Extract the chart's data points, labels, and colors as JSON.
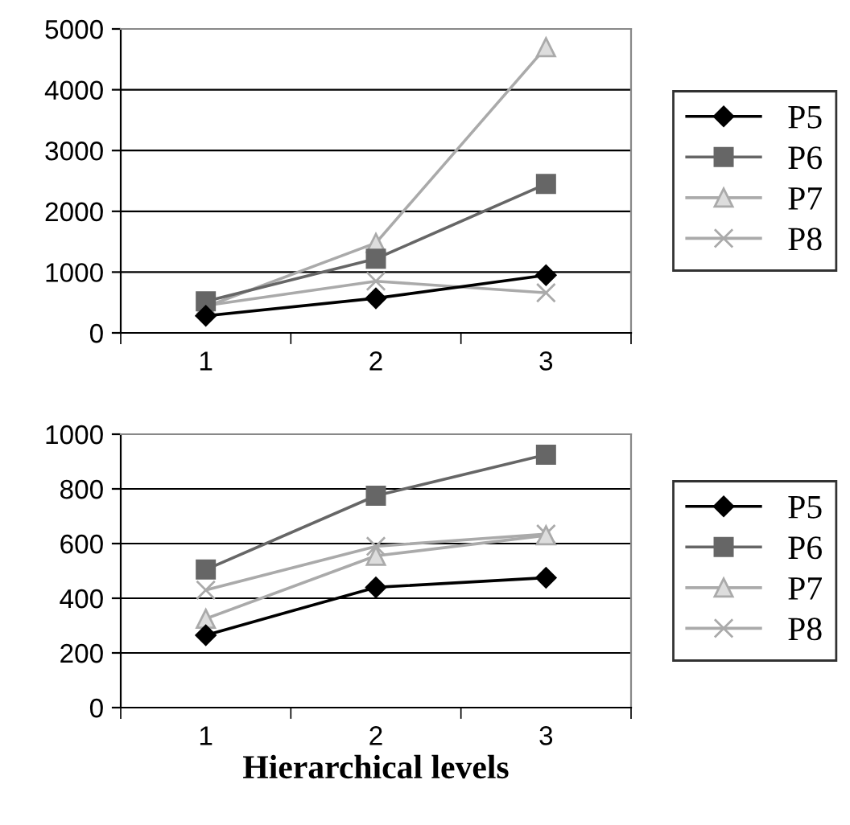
{
  "chart_data": [
    {
      "type": "line",
      "categories": [
        "1",
        "2",
        "3"
      ],
      "ylim": [
        0,
        5000
      ],
      "yticks": [
        0,
        1000,
        2000,
        3000,
        4000,
        5000
      ],
      "grid": "y",
      "legend": "right",
      "series": [
        {
          "name": "P5",
          "color": "#000000",
          "marker": "diamond",
          "values": [
            280,
            570,
            950
          ]
        },
        {
          "name": "P6",
          "color": "#666666",
          "marker": "square",
          "values": [
            520,
            1220,
            2450
          ]
        },
        {
          "name": "P7",
          "color": "#aaaaaa",
          "marker": "triangle",
          "values": [
            430,
            1480,
            4700
          ]
        },
        {
          "name": "P8",
          "color": "#aaaaaa",
          "marker": "cross",
          "values": [
            450,
            850,
            660
          ]
        }
      ]
    },
    {
      "type": "line",
      "categories": [
        "1",
        "2",
        "3"
      ],
      "xlabel": "Hierarchical levels",
      "ylim": [
        0,
        1000
      ],
      "yticks": [
        0,
        200,
        400,
        600,
        800,
        1000
      ],
      "grid": "y",
      "legend": "right",
      "series": [
        {
          "name": "P5",
          "color": "#000000",
          "marker": "diamond",
          "values": [
            265,
            440,
            475
          ]
        },
        {
          "name": "P6",
          "color": "#666666",
          "marker": "square",
          "values": [
            505,
            775,
            925
          ]
        },
        {
          "name": "P7",
          "color": "#aaaaaa",
          "marker": "triangle",
          "values": [
            325,
            555,
            630
          ]
        },
        {
          "name": "P8",
          "color": "#aaaaaa",
          "marker": "cross",
          "values": [
            430,
            590,
            635
          ]
        }
      ]
    }
  ]
}
